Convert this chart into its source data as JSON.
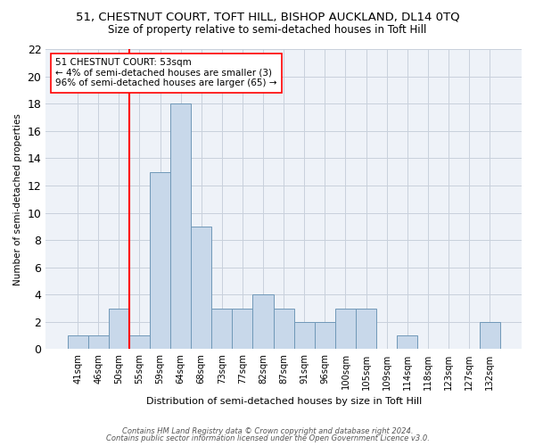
{
  "title1": "51, CHESTNUT COURT, TOFT HILL, BISHOP AUCKLAND, DL14 0TQ",
  "title2": "Size of property relative to semi-detached houses in Toft Hill",
  "xlabel": "Distribution of semi-detached houses by size in Toft Hill",
  "ylabel": "Number of semi-detached properties",
  "categories": [
    "41sqm",
    "46sqm",
    "50sqm",
    "55sqm",
    "59sqm",
    "64sqm",
    "68sqm",
    "73sqm",
    "77sqm",
    "82sqm",
    "87sqm",
    "91sqm",
    "96sqm",
    "100sqm",
    "105sqm",
    "109sqm",
    "114sqm",
    "118sqm",
    "123sqm",
    "127sqm",
    "132sqm"
  ],
  "values": [
    1,
    1,
    3,
    1,
    13,
    18,
    9,
    3,
    3,
    4,
    3,
    2,
    2,
    3,
    3,
    0,
    1,
    0,
    0,
    0,
    2
  ],
  "bar_color": "#c8d8ea",
  "bar_edge_color": "#7098b8",
  "red_line_x": 2.5,
  "ylim": [
    0,
    22
  ],
  "yticks": [
    0,
    2,
    4,
    6,
    8,
    10,
    12,
    14,
    16,
    18,
    20,
    22
  ],
  "annotation_text": "51 CHESTNUT COURT: 53sqm\n← 4% of semi-detached houses are smaller (3)\n96% of semi-detached houses are larger (65) →",
  "footer1": "Contains HM Land Registry data © Crown copyright and database right 2024.",
  "footer2": "Contains public sector information licensed under the Open Government Licence v3.0.",
  "bg_color": "#ffffff",
  "plot_bg_color": "#eef2f8",
  "grid_color": "#c8d0dc",
  "title1_fontsize": 9.5,
  "title2_fontsize": 8.5
}
